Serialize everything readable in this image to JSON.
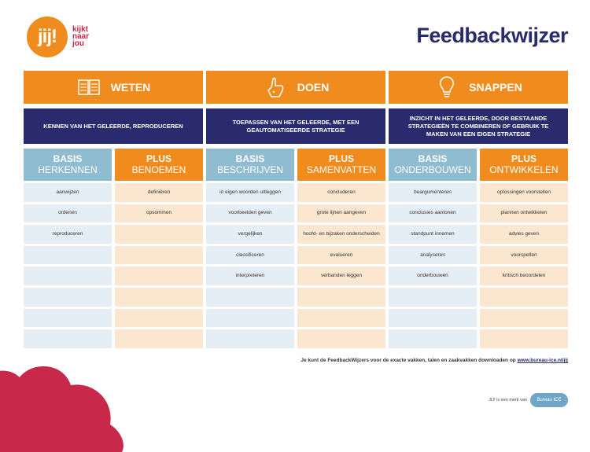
{
  "logo": {
    "badge": "jij!",
    "line1": "kijkt",
    "line2": "naar",
    "line3": "jou"
  },
  "title": "Feedbackwijzer",
  "columns": [
    {
      "head": "WETEN",
      "desc": "KENNEN VAN HET GELEERDE, REPRODUCEREN",
      "basis_a": "BASIS",
      "basis_b": "HERKENNEN",
      "plus_a": "PLUS",
      "plus_b": "BENOEMEN",
      "rows": [
        [
          "aanwijzen",
          "definiëren"
        ],
        [
          "ordenen",
          "opsommen"
        ],
        [
          "reproduceren",
          ""
        ],
        [
          "",
          ""
        ],
        [
          "",
          ""
        ],
        [
          "",
          ""
        ],
        [
          "",
          ""
        ],
        [
          "",
          ""
        ]
      ]
    },
    {
      "head": "DOEN",
      "desc": "TOEPASSEN VAN HET GELEERDE, MET EEN GEAUTOMATISEERDE STRATEGIE",
      "basis_a": "BASIS",
      "basis_b": "BESCHRIJVEN",
      "plus_a": "PLUS",
      "plus_b": "SAMENVATTEN",
      "rows": [
        [
          "in eigen woorden uitleggen",
          "concluderen"
        ],
        [
          "voorbeelden geven",
          "grote lijnen aangeven"
        ],
        [
          "vergelijken",
          "hoofd- en bijzaken onderscheiden"
        ],
        [
          "classificeren",
          "evalueren"
        ],
        [
          "interpreteren",
          "verbanden leggen"
        ],
        [
          "",
          ""
        ],
        [
          "",
          ""
        ],
        [
          "",
          ""
        ]
      ]
    },
    {
      "head": "SNAPPEN",
      "desc": "INZICHT IN HET GELEERDE, DOOR BESTAANDE STRATEGIEËN TE COMBINEREN OF GEBRUIK TE MAKEN VAN EEN EIGEN STRATEGIE",
      "basis_a": "BASIS",
      "basis_b": "ONDERBOUWEN",
      "plus_a": "PLUS",
      "plus_b": "ONTWIKKELEN",
      "rows": [
        [
          "beargumenteren",
          "oplossingen voorstellen"
        ],
        [
          "conclusies aantonen",
          "plannen ontwikkelen"
        ],
        [
          "standpunt innemen",
          "advies geven"
        ],
        [
          "analyseren",
          "voorspellen"
        ],
        [
          "onderbouwen",
          "kritisch beoordelen"
        ],
        [
          "",
          ""
        ],
        [
          "",
          ""
        ],
        [
          "",
          ""
        ]
      ]
    }
  ],
  "footnote": {
    "text": "Je kunt de FeedbackWijzers voor de exacte vakken, talen en zaakvakken downloaden op ",
    "link": "www.bureau-ice.nl/jij"
  },
  "brand": {
    "text": "JIJ! is een merk van",
    "badge": "Bureau ICE"
  },
  "colors": {
    "orange": "#f08c1e",
    "navy": "#2a2a6e",
    "blue": "#8fbcd0",
    "cell_blue": "#e4eef4",
    "cell_orange": "#fbe6d0",
    "crimson": "#c8284a"
  },
  "icons": [
    "book-icon",
    "hand-pointer-icon",
    "lightbulb-icon"
  ]
}
